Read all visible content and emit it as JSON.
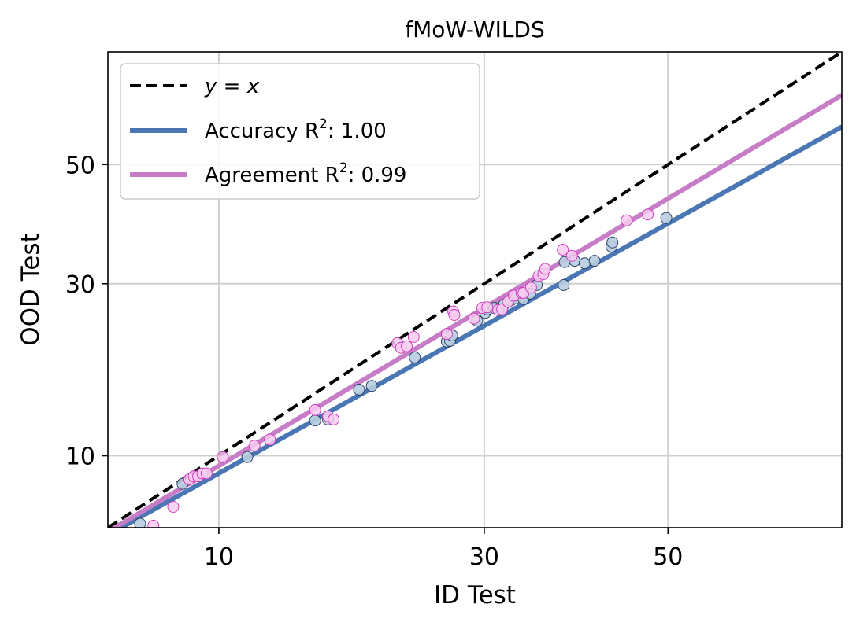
{
  "chart_data": {
    "type": "scatter",
    "title": "fMoW-WILDS",
    "xlabel": "ID Test",
    "ylabel": "OOD Test",
    "x_ticks": [
      10,
      30,
      50
    ],
    "y_ticks": [
      10,
      30,
      50
    ],
    "xlim": [
      5.5,
      69
    ],
    "ylim": [
      5.5,
      69
    ],
    "scale": "probit",
    "grid": true,
    "legend_position": "top-left",
    "legend": [
      {
        "label_pre": "y = x",
        "label_sup": "",
        "label_post": ""
      },
      {
        "label_pre": "Accuracy R",
        "label_sup": "2",
        "label_post": ": 1.00"
      },
      {
        "label_pre": "Agreement R",
        "label_sup": "2",
        "label_post": ": 0.99"
      }
    ],
    "colors": {
      "identity": "#000000",
      "accuracy_line": "#4a77b4",
      "accuracy_point_fill": "#b8cde0",
      "accuracy_point_edge": "#223a5e",
      "agreement_line": "#c77cc6",
      "agreement_point_fill": "#f7cdf0",
      "agreement_point_edge": "#cc33bb",
      "grid": "#d0d0d0"
    },
    "fit_lines": [
      {
        "name": "Accuracy",
        "points": [
          [
            5.5,
            5.15
          ],
          [
            69,
            56.6
          ]
        ]
      },
      {
        "name": "Agreement",
        "points": [
          [
            5.5,
            5.3
          ],
          [
            69,
            62.0
          ]
        ]
      }
    ],
    "series": [
      {
        "name": "Accuracy",
        "points": [
          [
            6.6,
            5.7
          ],
          [
            8.3,
            8.0
          ],
          [
            11.5,
            9.9
          ],
          [
            15.7,
            13.0
          ],
          [
            16.6,
            13.1
          ],
          [
            18.9,
            16.1
          ],
          [
            19.9,
            16.5
          ],
          [
            23.5,
            19.8
          ],
          [
            26.4,
            21.8
          ],
          [
            26.7,
            21.9
          ],
          [
            26.9,
            22.6
          ],
          [
            29.3,
            24.6
          ],
          [
            30.1,
            25.7
          ],
          [
            30.3,
            26.2
          ],
          [
            31.0,
            26.4
          ],
          [
            31.7,
            26.2
          ],
          [
            32.0,
            26.9
          ],
          [
            32.7,
            27.5
          ],
          [
            33.2,
            27.8
          ],
          [
            34.0,
            27.7
          ],
          [
            34.7,
            28.5
          ],
          [
            35.4,
            29.8
          ],
          [
            38.3,
            29.8
          ],
          [
            38.4,
            33.4
          ],
          [
            39.5,
            33.6
          ],
          [
            40.6,
            33.2
          ],
          [
            41.7,
            33.6
          ],
          [
            43.6,
            35.9
          ],
          [
            43.7,
            36.6
          ],
          [
            49.8,
            40.7
          ]
        ]
      },
      {
        "name": "Agreement",
        "points": [
          [
            7.1,
            5.6
          ],
          [
            7.9,
            6.6
          ],
          [
            8.6,
            8.3
          ],
          [
            8.8,
            8.5
          ],
          [
            9.0,
            8.5
          ],
          [
            9.2,
            8.7
          ],
          [
            9.4,
            8.7
          ],
          [
            10.2,
            9.9
          ],
          [
            11.9,
            10.8
          ],
          [
            12.8,
            11.3
          ],
          [
            15.7,
            14.0
          ],
          [
            16.6,
            13.4
          ],
          [
            17.0,
            13.1
          ],
          [
            22.0,
            21.6
          ],
          [
            22.3,
            21.0
          ],
          [
            22.8,
            21.2
          ],
          [
            23.4,
            22.4
          ],
          [
            26.4,
            22.8
          ],
          [
            27.0,
            25.9
          ],
          [
            27.1,
            25.4
          ],
          [
            29.0,
            24.9
          ],
          [
            29.8,
            26.4
          ],
          [
            30.3,
            26.5
          ],
          [
            31.4,
            26.1
          ],
          [
            31.8,
            26.2
          ],
          [
            32.4,
            27.3
          ],
          [
            33.0,
            28.2
          ],
          [
            33.8,
            28.6
          ],
          [
            34.0,
            28.6
          ],
          [
            34.8,
            29.4
          ],
          [
            35.6,
            31.2
          ],
          [
            36.1,
            31.5
          ],
          [
            36.3,
            32.3
          ],
          [
            38.2,
            35.4
          ],
          [
            39.2,
            34.4
          ],
          [
            45.3,
            40.3
          ],
          [
            47.7,
            41.3
          ]
        ]
      }
    ]
  }
}
